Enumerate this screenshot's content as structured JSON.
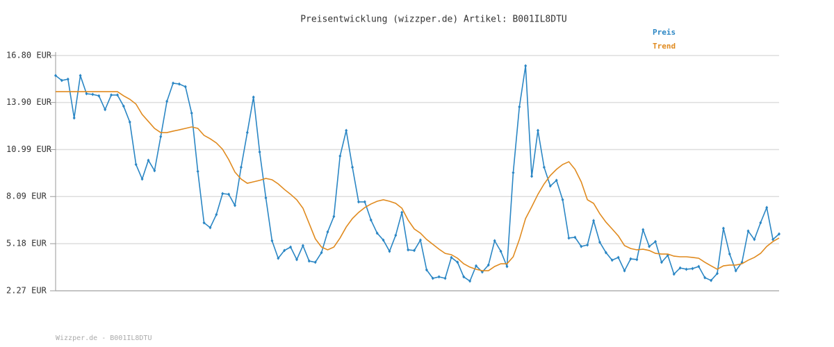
{
  "chart_data": {
    "type": "line",
    "title": "Preisentwicklung (wizzper.de) Artikel: B001IL8DTU",
    "footer": "Wizzper.de - B001IL8DTU",
    "legend": "top-right",
    "grid": true,
    "ylim": [
      2.27,
      16.8
    ],
    "yticks": [
      {
        "value": 2.27,
        "label": "2.27 EUR"
      },
      {
        "value": 5.18,
        "label": "5.18 EUR"
      },
      {
        "value": 8.09,
        "label": "8.09 EUR"
      },
      {
        "value": 10.99,
        "label": "10.99 EUR"
      },
      {
        "value": 13.9,
        "label": "13.90 EUR"
      },
      {
        "value": 16.8,
        "label": "16.80 EUR"
      }
    ],
    "categories": [
      null,
      null,
      null,
      null,
      null,
      null,
      null,
      null,
      null,
      null,
      null,
      null,
      null,
      null,
      null,
      null,
      null,
      null,
      null,
      null,
      null,
      null,
      null,
      null,
      null,
      null,
      null,
      null,
      null,
      null,
      null,
      null,
      null,
      null,
      null,
      null,
      null,
      null,
      null,
      null,
      null,
      null,
      null,
      null,
      null,
      null,
      null,
      null,
      null,
      null,
      null,
      null,
      null,
      null,
      null,
      null,
      null,
      null,
      null,
      null,
      null,
      null,
      null,
      null,
      null,
      null,
      null,
      null,
      null,
      null,
      null,
      null,
      null,
      null,
      null,
      null,
      null,
      null,
      null,
      null,
      null,
      null,
      null,
      null,
      null,
      null,
      null,
      null,
      null,
      null,
      null,
      null,
      null,
      null,
      null,
      null,
      null,
      null,
      null,
      null,
      null,
      null,
      null,
      null,
      null,
      null,
      null,
      null,
      null,
      null,
      null,
      null,
      null,
      null,
      null,
      null,
      null,
      null
    ],
    "series": [
      {
        "name": "Preis",
        "color": "#2a86c4",
        "markers": true,
        "values": [
          15.56,
          15.26,
          15.34,
          12.94,
          15.56,
          14.44,
          14.4,
          14.31,
          13.46,
          14.36,
          14.36,
          13.67,
          12.69,
          10.07,
          9.17,
          10.33,
          9.69,
          11.79,
          13.97,
          15.09,
          15.04,
          14.87,
          13.24,
          9.64,
          6.47,
          6.17,
          6.98,
          8.27,
          8.23,
          7.54,
          9.9,
          12.04,
          14.23,
          10.84,
          8.01,
          5.36,
          4.28,
          4.76,
          4.97,
          4.2,
          5.06,
          4.11,
          4.03,
          4.63,
          5.91,
          6.86,
          10.59,
          12.17,
          9.9,
          7.76,
          7.76,
          6.64,
          5.83,
          5.4,
          4.71,
          5.7,
          7.11,
          4.8,
          4.76,
          5.4,
          3.56,
          3.04,
          3.13,
          3.04,
          4.33,
          4.03,
          3.13,
          2.87,
          3.81,
          3.43,
          3.86,
          5.36,
          4.71,
          3.77,
          9.56,
          13.63,
          16.16,
          9.34,
          12.17,
          9.9,
          8.74,
          9.09,
          7.89,
          5.53,
          5.57,
          5.01,
          5.1,
          6.6,
          5.27,
          4.63,
          4.16,
          4.33,
          3.51,
          4.24,
          4.2,
          6.04,
          5.01,
          5.31,
          4.03,
          4.46,
          3.3,
          3.68,
          3.6,
          3.64,
          3.77,
          3.08,
          2.91,
          3.34,
          6.13,
          4.54,
          3.51,
          4.03,
          5.96,
          5.44,
          6.47,
          7.41,
          5.44,
          5.78
        ]
      },
      {
        "name": "Trend",
        "color": "#e08a1e",
        "markers": false,
        "values": [
          14.57,
          14.57,
          14.57,
          14.57,
          14.57,
          14.57,
          14.57,
          14.57,
          14.57,
          14.57,
          14.57,
          14.31,
          14.1,
          13.8,
          13.16,
          12.73,
          12.3,
          12.04,
          12.04,
          12.13,
          12.21,
          12.3,
          12.39,
          12.3,
          11.87,
          11.66,
          11.4,
          11.01,
          10.37,
          9.6,
          9.17,
          8.91,
          9.0,
          9.09,
          9.21,
          9.13,
          8.87,
          8.53,
          8.23,
          7.89,
          7.37,
          6.43,
          5.48,
          4.97,
          4.8,
          4.97,
          5.53,
          6.21,
          6.73,
          7.11,
          7.41,
          7.63,
          7.8,
          7.89,
          7.8,
          7.67,
          7.37,
          6.64,
          6.09,
          5.83,
          5.44,
          5.14,
          4.84,
          4.58,
          4.5,
          4.28,
          3.94,
          3.73,
          3.6,
          3.51,
          3.51,
          3.77,
          3.94,
          3.94,
          4.37,
          5.44,
          6.73,
          7.46,
          8.23,
          8.87,
          9.39,
          9.77,
          10.07,
          10.24,
          9.77,
          9.0,
          7.89,
          7.67,
          7.03,
          6.51,
          6.09,
          5.66,
          5.06,
          4.88,
          4.8,
          4.84,
          4.76,
          4.58,
          4.54,
          4.54,
          4.41,
          4.37,
          4.37,
          4.33,
          4.28,
          4.03,
          3.81,
          3.6,
          3.81,
          3.86,
          3.86,
          3.94,
          4.16,
          4.33,
          4.58,
          5.01,
          5.31,
          5.53
        ]
      }
    ]
  }
}
